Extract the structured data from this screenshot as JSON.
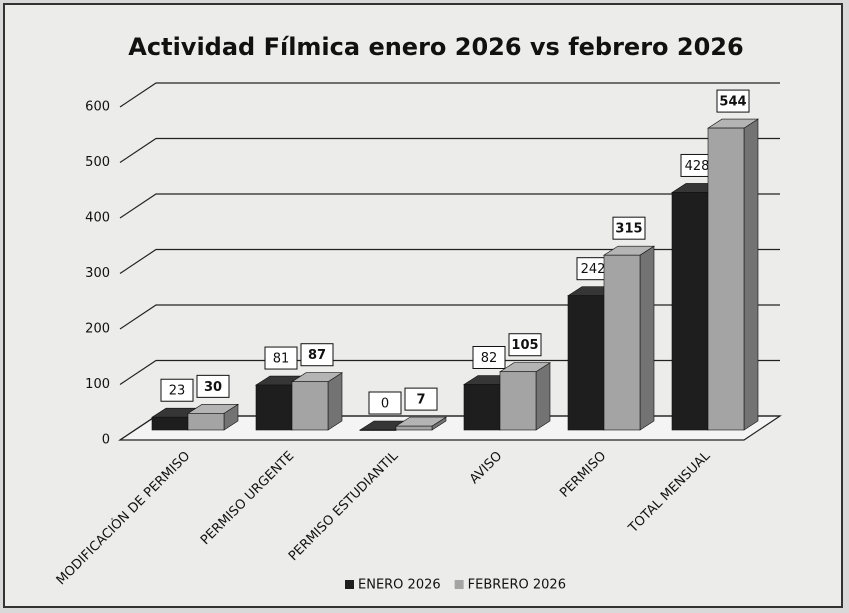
{
  "chart_data": {
    "type": "bar",
    "title": "Actividad Fílmica enero 2026 vs febrero 2026",
    "categories": [
      "MODIFICACIÓN DE PERMISO",
      "PERMISO URGENTE",
      "PERMISO ESTUDIANTIL",
      "AVISO",
      "PERMISO",
      "TOTAL MENSUAL"
    ],
    "series": [
      {
        "name": "ENERO 2026",
        "color": "#1e1e1e",
        "values": [
          23,
          81,
          0,
          82,
          242,
          428
        ]
      },
      {
        "name": "FEBRERO 2026",
        "color": "#a4a4a4",
        "values": [
          30,
          87,
          7,
          105,
          315,
          544
        ]
      }
    ],
    "ylim": [
      0,
      600
    ],
    "yticks": [
      0,
      100,
      200,
      300,
      400,
      500,
      600
    ],
    "grid": true,
    "legend": "bottom"
  }
}
